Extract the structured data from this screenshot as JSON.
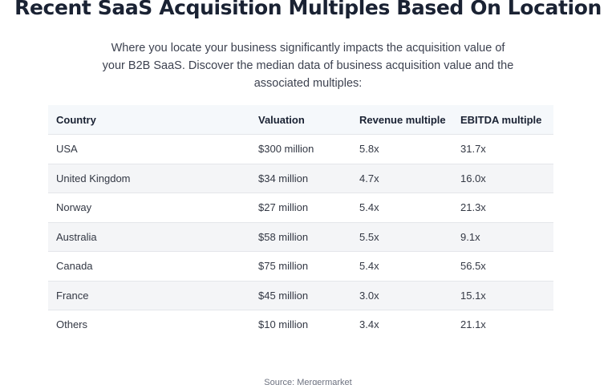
{
  "title": "Recent SaaS Acquisition Multiples Based On Location",
  "intro": "Where you locate your business significantly impacts the acquisition value of your B2B SaaS. Discover the median data of business acquisition value and the associated multiples:",
  "table": {
    "headers": [
      "Country",
      "Valuation",
      "Revenue multiple",
      "EBITDA multiple"
    ],
    "rows": [
      [
        "USA",
        "$300 million",
        "5.8x",
        "31.7x"
      ],
      [
        "United Kingdom",
        "$34 million",
        "4.7x",
        "16.0x"
      ],
      [
        "Norway",
        "$27 million",
        "5.4x",
        "21.3x"
      ],
      [
        "Australia",
        "$58 million",
        "5.5x",
        "9.1x"
      ],
      [
        "Canada",
        "$75 million",
        "5.4x",
        "56.5x"
      ],
      [
        "France",
        "$45 million",
        "3.0x",
        "15.1x"
      ],
      [
        "Others",
        "$10 million",
        "3.4x",
        "21.1x"
      ]
    ]
  },
  "source": "Source: Mergermarket"
}
